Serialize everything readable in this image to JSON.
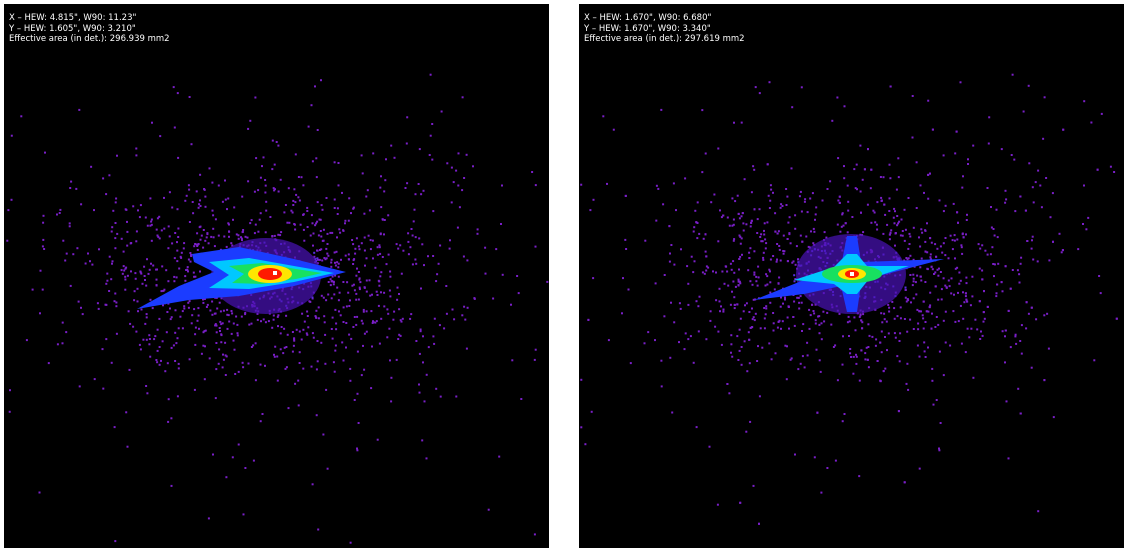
{
  "panels": [
    {
      "lines": [
        "X – HEW: 4.815\", W90: 11.23\"",
        "Y – HEW: 1.605\", W90: 3.210\"",
        "Effective area (in det.): 296.939 mm2"
      ]
    },
    {
      "lines": [
        "X – HEW: 1.670\", W90: 6.680\"",
        "Y – HEW: 1.670\", W90: 3.340\"",
        "Effective area (in det.): 297.619 mm2"
      ]
    }
  ]
}
